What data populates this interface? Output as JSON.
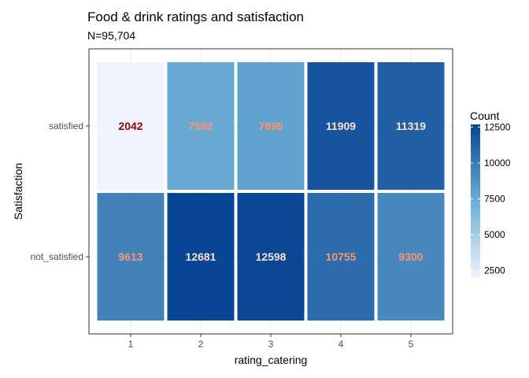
{
  "chart_data": {
    "type": "heatmap",
    "title": "Food & drink ratings and satisfaction",
    "subtitle": "N=95,704",
    "xlabel": "rating_catering",
    "ylabel": "Satisfaction",
    "x_categories": [
      "1",
      "2",
      "3",
      "4",
      "5"
    ],
    "y_categories": [
      "satisfied",
      "not_satisfied"
    ],
    "values": [
      [
        2042,
        7592,
        7895,
        11909,
        11319
      ],
      [
        9613,
        12681,
        12598,
        10755,
        9300
      ]
    ],
    "legend": {
      "title": "Count",
      "ticks": [
        "12500",
        "10000",
        "7500",
        "5000",
        "2500"
      ],
      "tick_values": [
        12500,
        10000,
        7500,
        5000,
        2500
      ],
      "min": 2042,
      "max": 12681,
      "placement": "right"
    },
    "colors": {
      "low": "#eef3fe",
      "mid": "#6baed6",
      "high": "#084594",
      "label_dark": "#99000d",
      "label_salmon": "#fc9272",
      "label_light": "#fee0d2",
      "panel_border": "#333333",
      "grid": "#ebebeb"
    },
    "grid": true
  }
}
